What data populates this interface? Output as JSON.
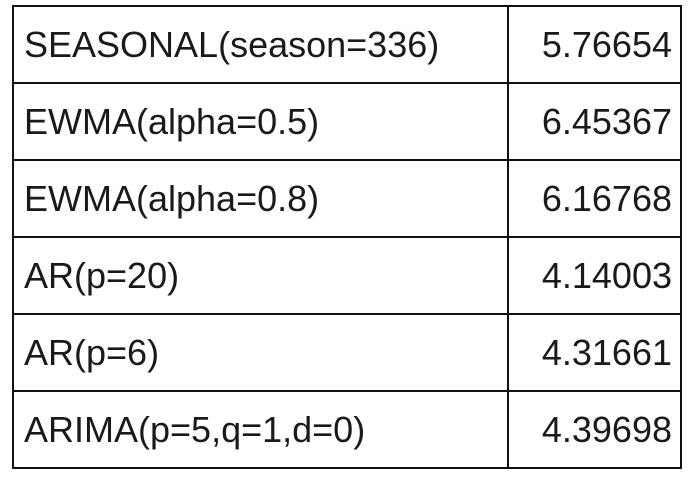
{
  "table": {
    "rows": [
      {
        "model": "SEASONAL(season=336)",
        "value": "5.76654"
      },
      {
        "model": "EWMA(alpha=0.5)",
        "value": "6.45367"
      },
      {
        "model": "EWMA(alpha=0.8)",
        "value": "6.16768"
      },
      {
        "model": "AR(p=20)",
        "value": "4.14003"
      },
      {
        "model": "AR(p=6)",
        "value": "4.31661"
      },
      {
        "model": "ARIMA(p=5,q=1,d=0)",
        "value": "4.39698"
      }
    ]
  }
}
